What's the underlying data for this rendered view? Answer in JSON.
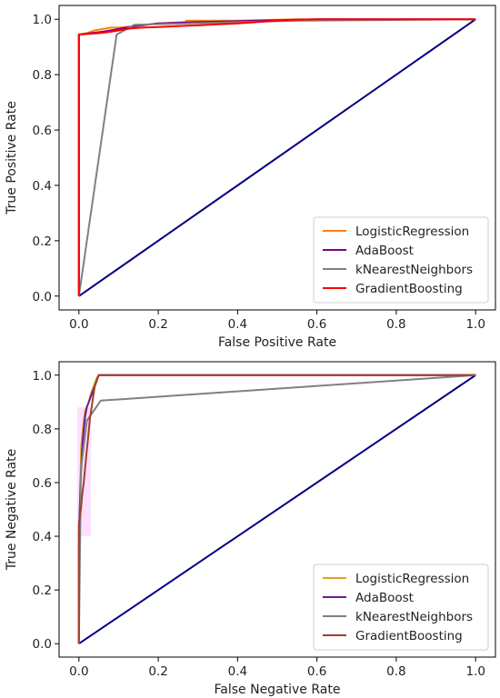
{
  "chart_data": [
    {
      "type": "line",
      "title": "",
      "xlabel": "False Positive Rate",
      "ylabel": "True Positive Rate",
      "xlim": [
        -0.05,
        1.05
      ],
      "ylim": [
        -0.05,
        1.05
      ],
      "xticks": [
        "0.0",
        "0.2",
        "0.4",
        "0.6",
        "0.8",
        "1.0"
      ],
      "yticks": [
        "0.0",
        "0.2",
        "0.4",
        "0.6",
        "0.8",
        "1.0"
      ],
      "legend_position": "bottom-right",
      "grid": false,
      "diagonal": {
        "x": [
          0,
          1
        ],
        "y": [
          0,
          1
        ],
        "color": "#000080"
      },
      "series": [
        {
          "name": "LogisticRegression",
          "color": "#ff7f0e",
          "band": null,
          "x": [
            0,
            0,
            0.02,
            0.04,
            0.06,
            0.08,
            0.1,
            0.14,
            0.2,
            0.27,
            0.27,
            0.4,
            0.55,
            1.0
          ],
          "y": [
            0,
            0.945,
            0.95,
            0.96,
            0.965,
            0.97,
            0.97,
            0.975,
            0.985,
            0.99,
            0.995,
            0.995,
            1.0,
            1.0
          ]
        },
        {
          "name": "AdaBoost",
          "color": "#800080",
          "band": null,
          "x": [
            0,
            0,
            0.03,
            0.06,
            0.1,
            0.14,
            0.2,
            0.3,
            0.45,
            0.6,
            1.0
          ],
          "y": [
            0,
            0.945,
            0.95,
            0.955,
            0.965,
            0.975,
            0.985,
            0.99,
            0.995,
            1.0,
            1.0
          ]
        },
        {
          "name": "kNearestNeighbors",
          "color": "#808080",
          "band": null,
          "x": [
            0,
            0.095,
            0.14,
            0.55,
            1.0
          ],
          "y": [
            0,
            0.945,
            0.98,
            0.995,
            1.0
          ]
        },
        {
          "name": "GradientBoosting",
          "color": "#ff0000",
          "band": null,
          "x": [
            0,
            0,
            0.03,
            0.05,
            0.07,
            0.09,
            0.11,
            0.13,
            0.16,
            0.2,
            0.25,
            0.3,
            0.35,
            0.4,
            0.45,
            0.5,
            0.55,
            0.6,
            1.0
          ],
          "y": [
            0,
            0.945,
            0.948,
            0.95,
            0.953,
            0.957,
            0.962,
            0.967,
            0.97,
            0.972,
            0.975,
            0.978,
            0.982,
            0.985,
            0.99,
            0.995,
            0.998,
            1.0,
            1.0
          ]
        }
      ]
    },
    {
      "type": "line",
      "title": "",
      "xlabel": "False Negative Rate",
      "ylabel": "True Negative Rate",
      "xlim": [
        -0.05,
        1.05
      ],
      "ylim": [
        -0.05,
        1.05
      ],
      "xticks": [
        "0.0",
        "0.2",
        "0.4",
        "0.6",
        "0.8",
        "1.0"
      ],
      "yticks": [
        "0.0",
        "0.2",
        "0.4",
        "0.6",
        "0.8",
        "1.0"
      ],
      "legend_position": "bottom-right",
      "grid": false,
      "diagonal": {
        "x": [
          0,
          1
        ],
        "y": [
          0,
          1
        ],
        "color": "#000080"
      },
      "series": [
        {
          "name": "LogisticRegression",
          "color": "#daa520",
          "band": null,
          "x": [
            0,
            0,
            0.003,
            0.006,
            0.01,
            0.013,
            0.016,
            0.02,
            0.025,
            0.03,
            0.035,
            0.04,
            0.045,
            0.05,
            1.0
          ],
          "y": [
            0,
            0.35,
            0.55,
            0.74,
            0.8,
            0.84,
            0.87,
            0.88,
            0.9,
            0.93,
            0.95,
            0.97,
            0.99,
            1.0,
            1.0
          ]
        },
        {
          "name": "AdaBoost",
          "color": "#6a1b9a",
          "band": null,
          "x": [
            0,
            0,
            0.004,
            0.008,
            0.012,
            0.016,
            0.02,
            0.03,
            0.04,
            0.05,
            1.0
          ],
          "y": [
            0,
            0.4,
            0.6,
            0.72,
            0.8,
            0.85,
            0.88,
            0.92,
            0.96,
            1.0,
            1.0
          ]
        },
        {
          "name": "kNearestNeighbors",
          "color": "#808080",
          "band": null,
          "x": [
            0,
            0.005,
            0.02,
            0.055,
            1.0
          ],
          "y": [
            0,
            0.65,
            0.83,
            0.905,
            1.0
          ]
        },
        {
          "name": "GradientBoosting",
          "color": "#a0402a",
          "band": {
            "x0": 0,
            "x1": 0.03,
            "y0": 0.4,
            "y1": 0.88,
            "color": "#ff80ff"
          },
          "x": [
            0,
            0,
            0.005,
            0.008,
            0.012,
            0.016,
            0.02,
            0.024,
            0.028,
            0.032,
            0.036,
            0.04,
            0.045,
            0.05,
            1.0
          ],
          "y": [
            0,
            0.45,
            0.5,
            0.55,
            0.6,
            0.66,
            0.72,
            0.78,
            0.84,
            0.88,
            0.92,
            0.96,
            0.98,
            1.0,
            1.0
          ]
        }
      ]
    }
  ]
}
